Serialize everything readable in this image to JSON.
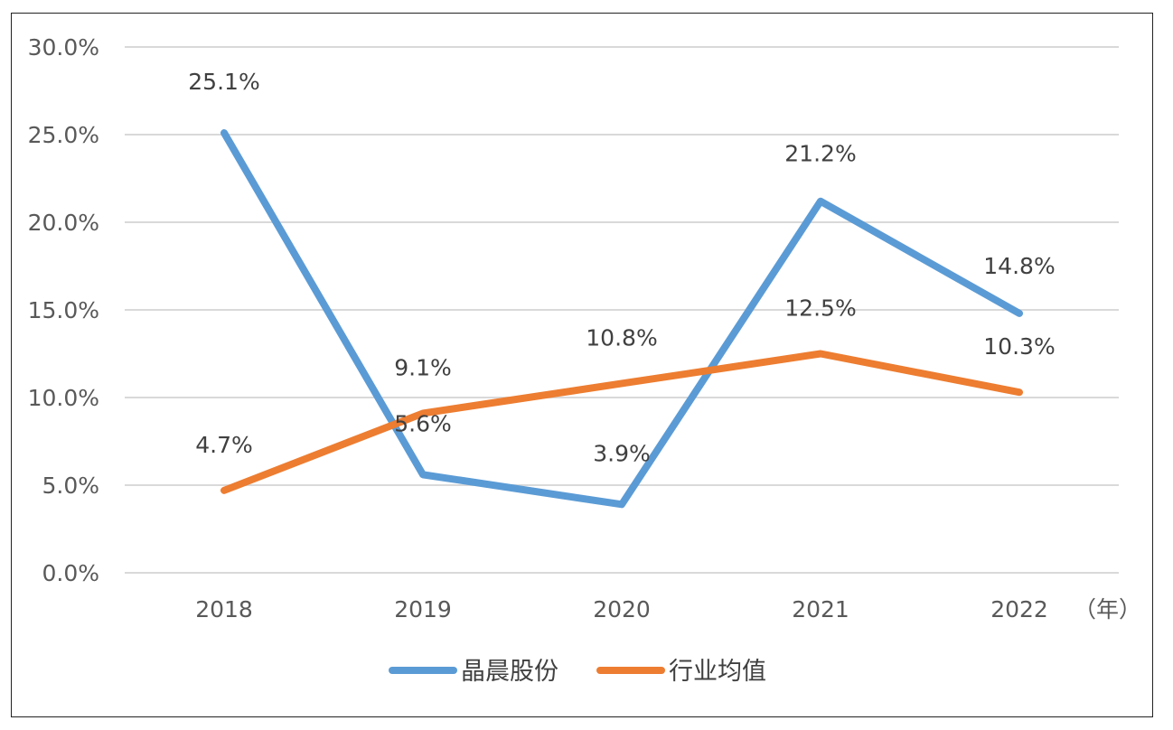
{
  "chart_data": {
    "type": "line",
    "categories": [
      "2018",
      "2019",
      "2020",
      "2021",
      "2022"
    ],
    "x_unit_label": "（年）",
    "ylim": [
      0,
      30
    ],
    "y_ticks": [
      "0.0%",
      "5.0%",
      "10.0%",
      "15.0%",
      "20.0%",
      "25.0%",
      "30.0%"
    ],
    "grid": true,
    "legend_position": "bottom",
    "series": [
      {
        "name": "晶晨股份",
        "color": "#5b9bd5",
        "values": [
          25.1,
          5.6,
          3.9,
          21.2,
          14.8
        ],
        "labels": [
          "25.1%",
          "5.6%",
          "3.9%",
          "21.2%",
          "14.8%"
        ]
      },
      {
        "name": "行业均值",
        "color": "#ed7d31",
        "values": [
          4.7,
          9.1,
          10.8,
          12.5,
          10.3
        ],
        "labels": [
          "4.7%",
          "9.1%",
          "10.8%",
          "12.5%",
          "10.3%"
        ]
      }
    ]
  }
}
